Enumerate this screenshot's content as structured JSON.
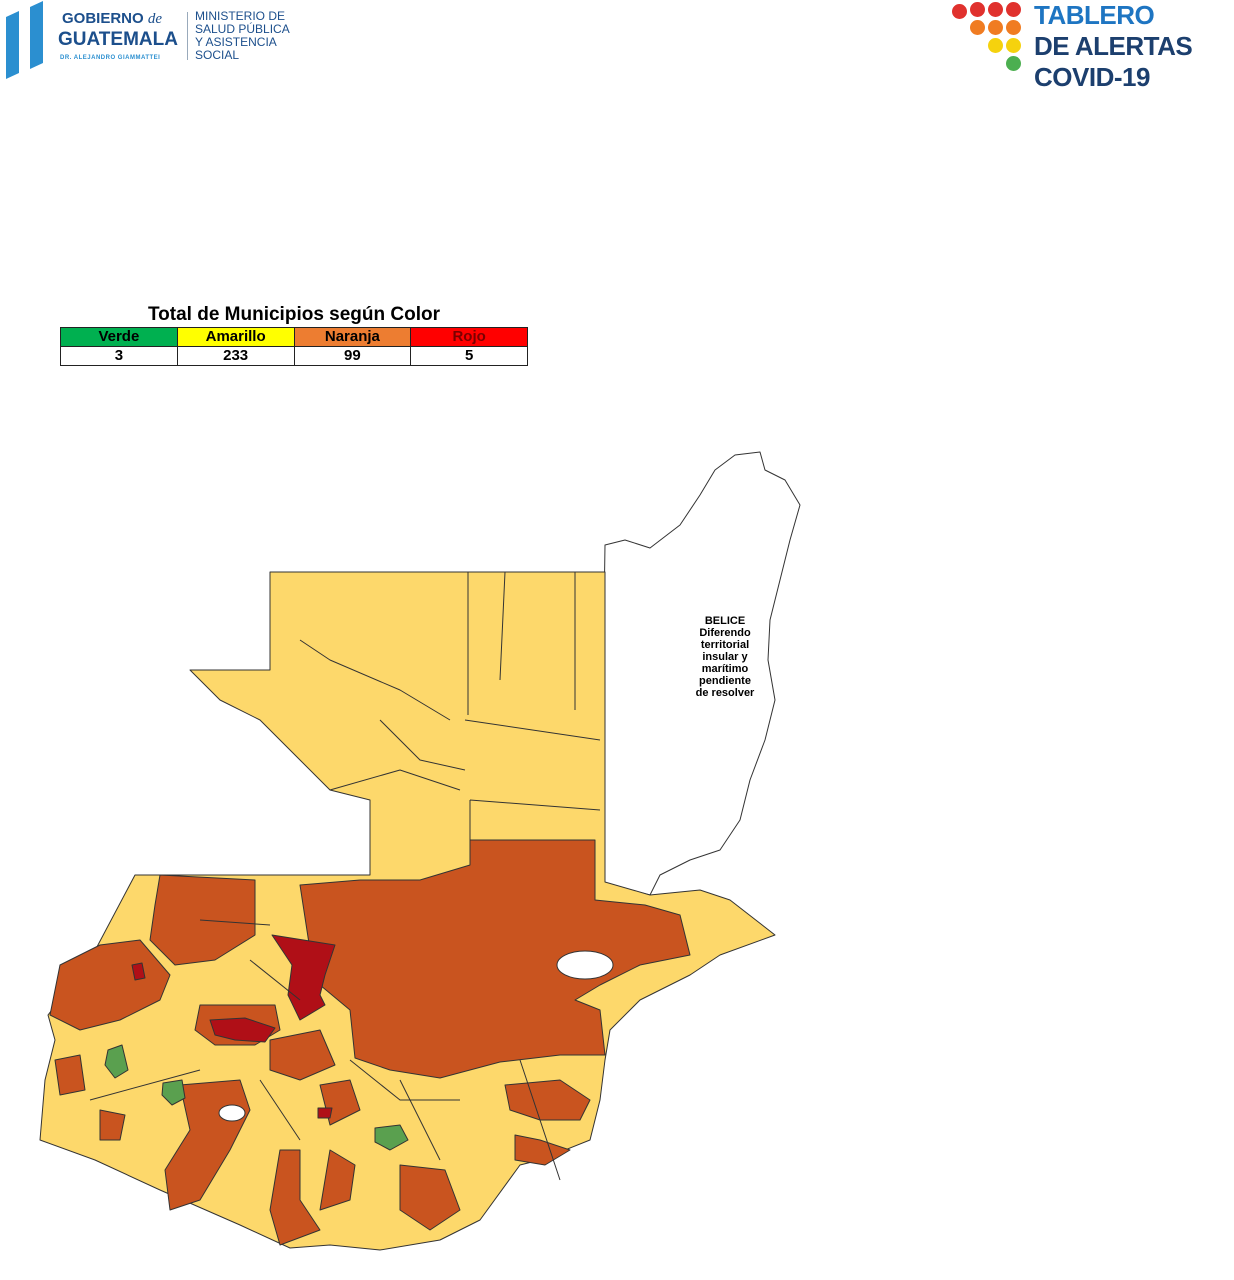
{
  "header": {
    "left_logo": {
      "line1": "GOBIERNO",
      "de": "de",
      "line2": "GUATEMALA",
      "line3": "DR. ALEJANDRO GIAMMATTEI",
      "ministry": [
        "MINISTERIO DE",
        "SALUD PÚBLICA",
        "Y ASISTENCIA",
        "SOCIAL"
      ]
    },
    "right_logo": {
      "lines": [
        "TABLERO",
        "DE ALERTAS",
        "COVID-19"
      ]
    }
  },
  "summary": {
    "title": "Total de Municipios según Color",
    "columns": [
      {
        "label": "Verde",
        "value": "3",
        "color": "#00b050",
        "text_color": "#000000"
      },
      {
        "label": "Amarillo",
        "value": "233",
        "color": "#ffff00",
        "text_color": "#000000"
      },
      {
        "label": "Naranja",
        "value": "99",
        "color": "#ed7d31",
        "text_color": "#000000"
      },
      {
        "label": "Rojo",
        "value": "5",
        "color": "#ff0000",
        "text_color": "#7a0000"
      }
    ]
  },
  "map": {
    "colors": {
      "amarillo": "#fdd86b",
      "naranja": "#c9541f",
      "rojo": "#b00f17",
      "verde": "#5aa04f"
    },
    "belize_label": [
      "BELICE",
      "Diferendo",
      "territorial",
      "insular y",
      "marítimo",
      "pendiente",
      "de resolver"
    ]
  }
}
